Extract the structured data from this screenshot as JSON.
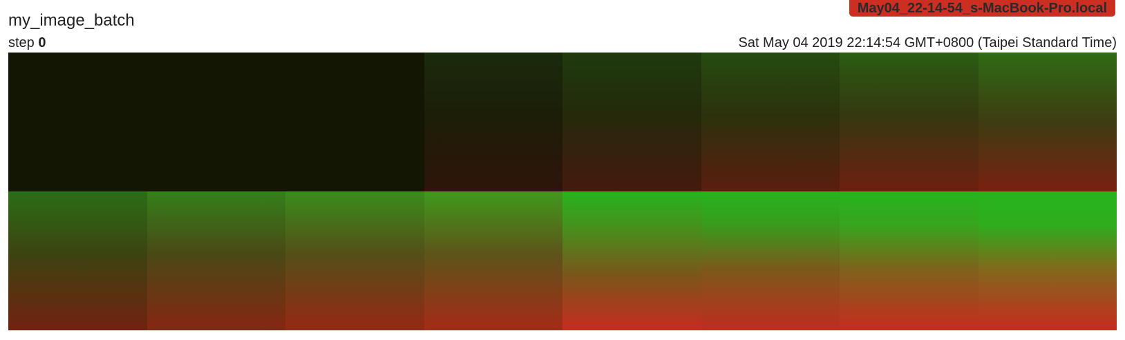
{
  "card": {
    "title": "my_image_batch",
    "run_name": "May04_22-14-54_s-MacBook-Pro.local",
    "step_label": "step",
    "step_value": "0",
    "timestamp": "Sat May 04 2019 22:14:54 GMT+0800 (Taipei Standard Time)"
  },
  "colors": {
    "run_badge": "#cc2e22",
    "image_dark": "#121603",
    "image_green": "#27b41e",
    "image_red": "#c72b20"
  },
  "image_grid": {
    "rows": 2,
    "columns": 8,
    "tile_count": 16
  }
}
